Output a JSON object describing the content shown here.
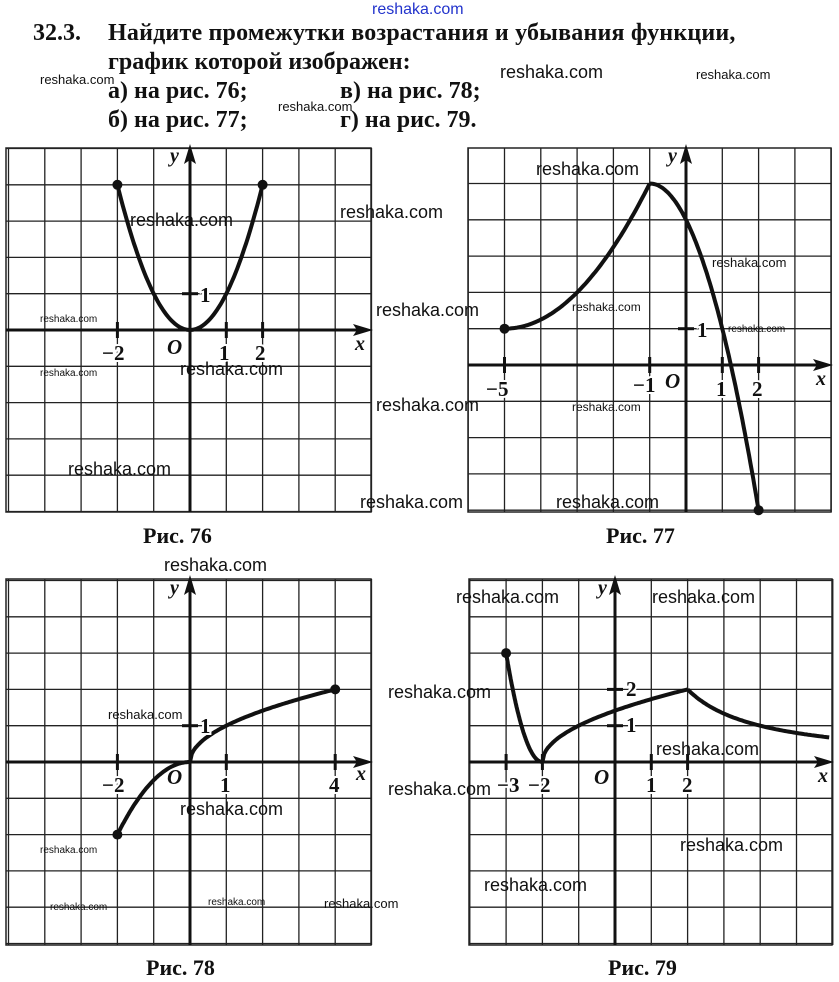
{
  "problem": {
    "number": "32.3.",
    "line1": "Найдите промежутки возрастания и убывания функции,",
    "line2": "график которой изображен:",
    "items": [
      "а) на рис. 76;",
      "в) на рис. 78;",
      "б) на рис. 77;",
      "г) на рис. 79."
    ]
  },
  "figures": [
    {
      "caption": "Рис. 76",
      "axis_x": "x",
      "axis_y": "y",
      "origin": "O",
      "ticks_x": [
        "−2",
        "1",
        "2"
      ],
      "ticks_y": [
        "1"
      ]
    },
    {
      "caption": "Рис. 77",
      "axis_x": "x",
      "axis_y": "y",
      "origin": "O",
      "ticks_x": [
        "−5",
        "−1",
        "1",
        "2"
      ],
      "ticks_y": [
        "1"
      ]
    },
    {
      "caption": "Рис. 78",
      "axis_x": "x",
      "axis_y": "y",
      "origin": "O",
      "ticks_x": [
        "−2",
        "1",
        "4"
      ],
      "ticks_y": [
        "1"
      ]
    },
    {
      "caption": "Рис. 79",
      "axis_x": "x",
      "axis_y": "y",
      "origin": "O",
      "ticks_x": [
        "−3",
        "−2",
        "1",
        "2"
      ],
      "ticks_y": [
        "1",
        "2"
      ]
    }
  ],
  "watermark_text": "reshaka.com",
  "colors": {
    "ink": "#111111",
    "watermark_top": "#2233cc"
  }
}
